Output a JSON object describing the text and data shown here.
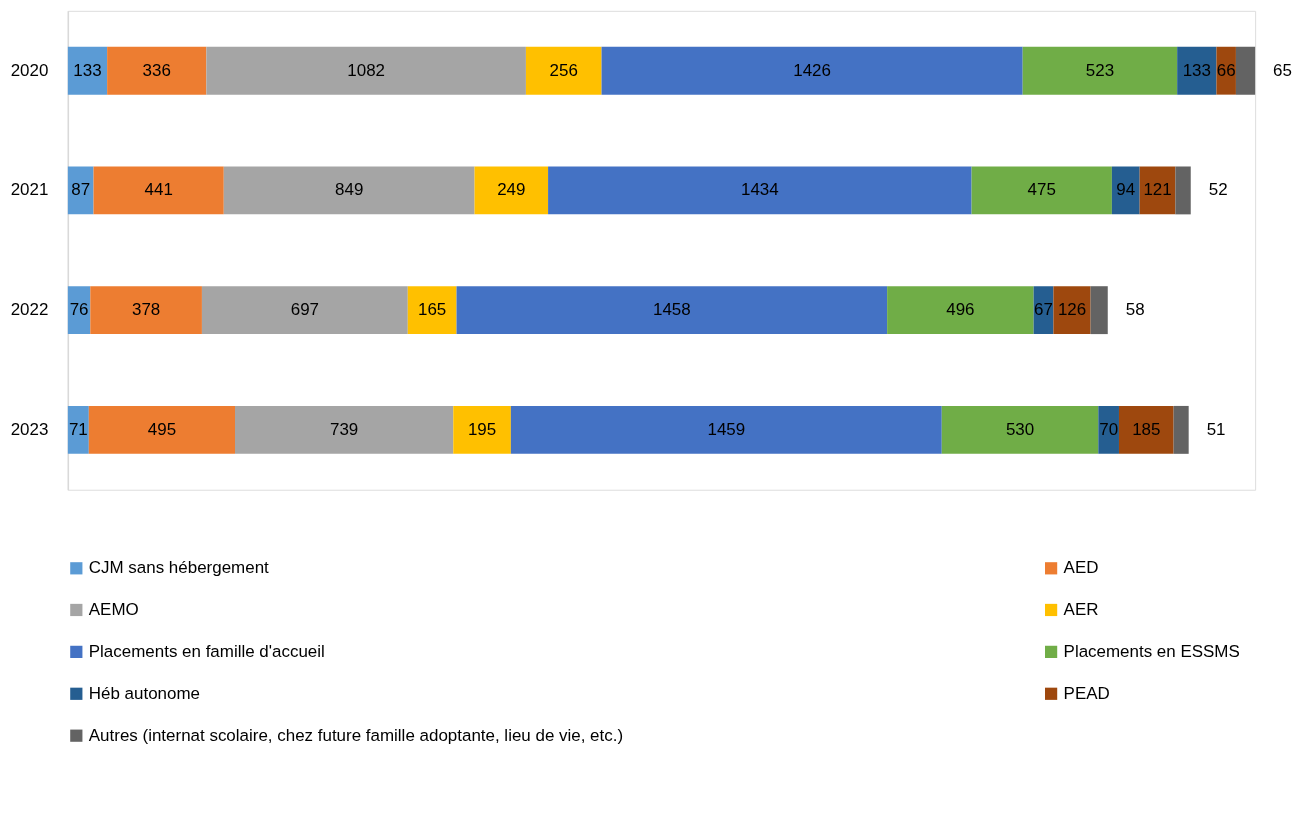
{
  "chart_data": {
    "type": "bar",
    "orientation": "horizontal",
    "stacked": true,
    "data_labels": true,
    "legend": "bottom",
    "grid": false,
    "categories": [
      "2020",
      "2021",
      "2022",
      "2023"
    ],
    "series": [
      {
        "name": "CJM sans hébergement",
        "color": "#5b9bd5",
        "values": [
          133,
          87,
          76,
          71
        ]
      },
      {
        "name": "AED",
        "color": "#ed7d31",
        "values": [
          336,
          441,
          378,
          495
        ]
      },
      {
        "name": "AEMO",
        "color": "#a5a5a5",
        "values": [
          1082,
          849,
          697,
          739
        ]
      },
      {
        "name": "AER",
        "color": "#ffc000",
        "values": [
          256,
          249,
          165,
          195
        ]
      },
      {
        "name": "Placements en famille d'accueil",
        "color": "#4472c4",
        "values": [
          1426,
          1434,
          1458,
          1459
        ]
      },
      {
        "name": "Placements en ESSMS",
        "color": "#70ad47",
        "values": [
          523,
          475,
          496,
          530
        ]
      },
      {
        "name": "Héb autonome",
        "color": "#255e91",
        "values": [
          133,
          94,
          67,
          70
        ]
      },
      {
        "name": "PEAD",
        "color": "#9e480e",
        "values": [
          66,
          121,
          126,
          185
        ]
      },
      {
        "name": "Autres (internat scolaire, chez future famille adoptante, lieu de vie, etc.)",
        "color": "#636363",
        "values": [
          65,
          52,
          58,
          51
        ]
      }
    ]
  }
}
